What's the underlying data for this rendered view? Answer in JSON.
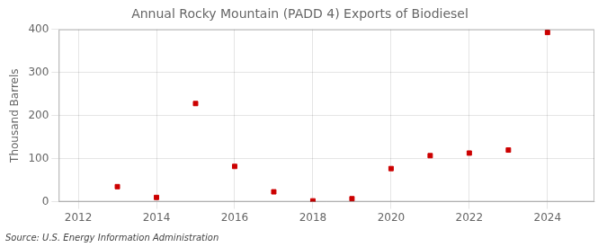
{
  "chart_data": {
    "type": "scatter",
    "title": "Annual Rocky Mountain (PADD 4) Exports of Biodiesel",
    "ylabel": "Thousand Barrels",
    "annotation": "Source: U.S. Energy Information Administration",
    "x": [
      2013,
      2014,
      2015,
      2016,
      2017,
      2018,
      2019,
      2020,
      2021,
      2022,
      2023,
      2024
    ],
    "values": [
      35,
      10,
      228,
      82,
      23,
      2,
      7,
      77,
      107,
      113,
      120,
      393
    ],
    "color": "#cc0000",
    "marker": "square",
    "xlim": [
      2011.5,
      2025.2
    ],
    "ylim": [
      0,
      400
    ],
    "xticks": [
      2012,
      2014,
      2016,
      2018,
      2020,
      2022,
      2024
    ],
    "yticks": [
      0,
      100,
      200,
      300,
      400
    ],
    "grid": true
  }
}
